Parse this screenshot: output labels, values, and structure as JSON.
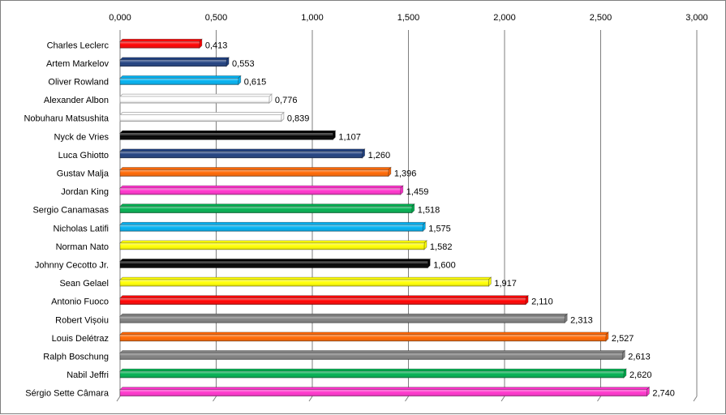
{
  "chart_data": {
    "type": "bar",
    "orientation": "horizontal",
    "title": "",
    "xlabel": "",
    "ylabel": "",
    "xlim": [
      0,
      3
    ],
    "grid": true,
    "legend": "none",
    "ticks": [
      "0,000",
      "0,500",
      "1,000",
      "1,500",
      "2,000",
      "2,500",
      "3,000"
    ],
    "tick_values": [
      0,
      0.5,
      1,
      1.5,
      2,
      2.5,
      3
    ],
    "categories": [
      "Charles Leclerc",
      "Artem Markelov",
      "Oliver Rowland",
      "Alexander Albon",
      "Nobuharu Matsushita",
      "Nyck de Vries",
      "Luca Ghiotto",
      "Gustav Malja",
      "Jordan King",
      "Sergio Canamasas",
      "Nicholas Latifi",
      "Norman Nato",
      "Johnny Cecotto Jr.",
      "Sean Gelael",
      "Antonio Fuoco",
      "Robert Vișoiu",
      "Louis Delétraz",
      "Ralph Boschung",
      "Nabil Jeffri",
      "Sérgio Sette Câmara"
    ],
    "values": [
      0.413,
      0.553,
      0.615,
      0.776,
      0.839,
      1.107,
      1.26,
      1.396,
      1.459,
      1.518,
      1.575,
      1.582,
      1.6,
      1.917,
      2.11,
      2.313,
      2.527,
      2.613,
      2.62,
      2.74
    ],
    "value_labels": [
      "0,413",
      "0,553",
      "0,615",
      "0,776",
      "0,839",
      "1,107",
      "1,260",
      "1,396",
      "1,459",
      "1,518",
      "1,575",
      "1,582",
      "1,600",
      "1,917",
      "2,110",
      "2,313",
      "2,527",
      "2,613",
      "2,620",
      "2,740"
    ],
    "colors": [
      "#ff0000",
      "#1f3f7f",
      "#00b0f0",
      "#ffffff",
      "#ffffff",
      "#000000",
      "#1f3f7f",
      "#ff6600",
      "#ff33cc",
      "#00b050",
      "#00b0f0",
      "#ffff00",
      "#000000",
      "#ffff00",
      "#ff0000",
      "#808080",
      "#ff6600",
      "#808080",
      "#00b050",
      "#ff33cc"
    ],
    "gridline_color": "#7f7f7f"
  }
}
